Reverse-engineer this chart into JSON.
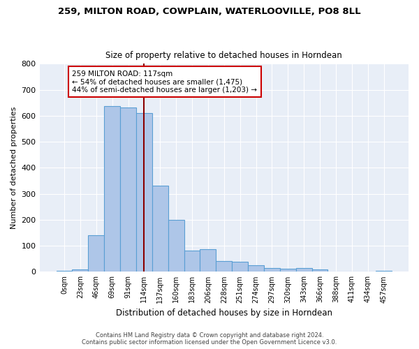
{
  "title1": "259, MILTON ROAD, COWPLAIN, WATERLOOVILLE, PO8 8LL",
  "title2": "Size of property relative to detached houses in Horndean",
  "xlabel": "Distribution of detached houses by size in Horndean",
  "ylabel": "Number of detached properties",
  "footnote1": "Contains HM Land Registry data © Crown copyright and database right 2024.",
  "footnote2": "Contains public sector information licensed under the Open Government Licence v3.0.",
  "bar_labels": [
    "0sqm",
    "23sqm",
    "46sqm",
    "69sqm",
    "91sqm",
    "114sqm",
    "137sqm",
    "160sqm",
    "183sqm",
    "206sqm",
    "228sqm",
    "251sqm",
    "274sqm",
    "297sqm",
    "320sqm",
    "343sqm",
    "366sqm",
    "388sqm",
    "411sqm",
    "434sqm",
    "457sqm"
  ],
  "bar_values": [
    5,
    10,
    142,
    637,
    632,
    610,
    330,
    200,
    83,
    88,
    42,
    40,
    25,
    15,
    12,
    14,
    10,
    0,
    0,
    0,
    5
  ],
  "bar_color": "#aec6e8",
  "bar_edge_color": "#5a9fd4",
  "bg_color": "#e8eef7",
  "grid_color": "#ffffff",
  "vline_x_index": 5,
  "vline_color": "#8b0000",
  "annotation_line1": "259 MILTON ROAD: 117sqm",
  "annotation_line2": "← 54% of detached houses are smaller (1,475)",
  "annotation_line3": "44% of semi-detached houses are larger (1,203) →",
  "annotation_box_color": "#cc0000",
  "ylim": [
    0,
    800
  ],
  "yticks": [
    0,
    100,
    200,
    300,
    400,
    500,
    600,
    700,
    800
  ]
}
